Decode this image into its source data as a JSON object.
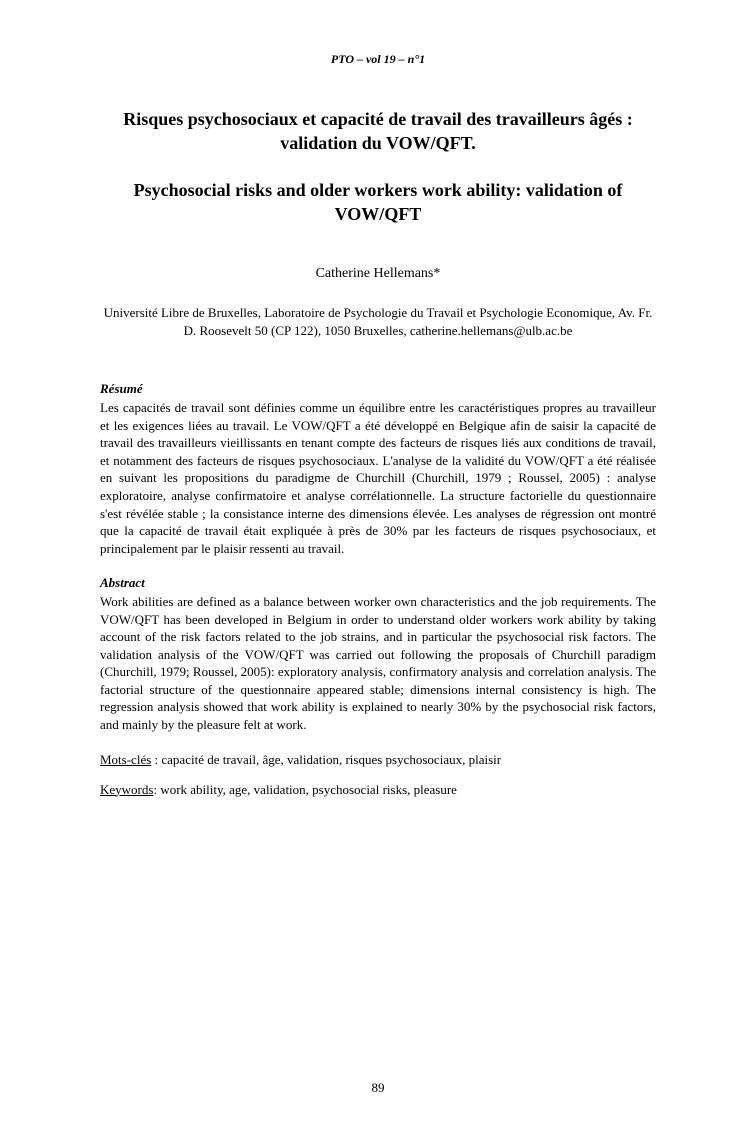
{
  "header": "PTO – vol 19 – n°1",
  "title_fr": "Risques psychosociaux et capacité de travail des travailleurs âgés : validation du VOW/QFT.",
  "title_en": "Psychosocial risks and older workers work ability: validation of VOW/QFT",
  "author": "Catherine Hellemans*",
  "affiliation": "Université Libre de Bruxelles, Laboratoire de Psychologie du Travail et Psychologie Economique, Av. Fr. D. Roosevelt 50 (CP 122), 1050 Bruxelles, catherine.hellemans@ulb.ac.be",
  "resume_heading": "Résumé",
  "resume_body": "Les capacités de travail sont définies comme un équilibre entre les caractéristiques propres au travailleur et les exigences liées au travail. Le VOW/QFT a été développé en Belgique afin de saisir la capacité de travail des travailleurs vieillissants en tenant compte des facteurs de risques liés aux conditions de travail, et notamment des facteurs de risques psychosociaux. L'analyse de la validité du VOW/QFT a été réalisée en suivant les propositions du paradigme de Churchill (Churchill, 1979 ; Roussel, 2005) : analyse exploratoire, analyse confirmatoire et analyse corrélationnelle. La structure factorielle du questionnaire s'est révélée stable ; la consistance interne des dimensions élevée. Les analyses de régression ont montré que la capacité de travail était expliquée à près de 30% par les facteurs de risques psychosociaux, et principalement par le plaisir ressenti au travail.",
  "abstract_heading": "Abstract",
  "abstract_body": "Work abilities are defined as a balance between worker own characteristics and the job requirements. The VOW/QFT has been developed in Belgium in order to understand older workers work ability by taking account of the risk factors related to the job strains, and in particular the psychosocial risk factors. The validation analysis of the VOW/QFT was carried out following the proposals of Churchill paradigm (Churchill, 1979; Roussel, 2005): exploratory analysis, confirmatory analysis and correlation analysis. The factorial structure of the questionnaire appeared stable; dimensions internal consistency is high. The regression analysis showed that work ability is explained to nearly 30% by the psychosocial risk factors, and mainly by the pleasure felt at work.",
  "motscles_label": "Mots-clés",
  "motscles_value": " : capacité de travail, âge, validation, risques psychosociaux, plaisir",
  "keywords_label": "Keywords",
  "keywords_value": ": work ability, age, validation, psychosocial risks, pleasure",
  "page_number": "89"
}
